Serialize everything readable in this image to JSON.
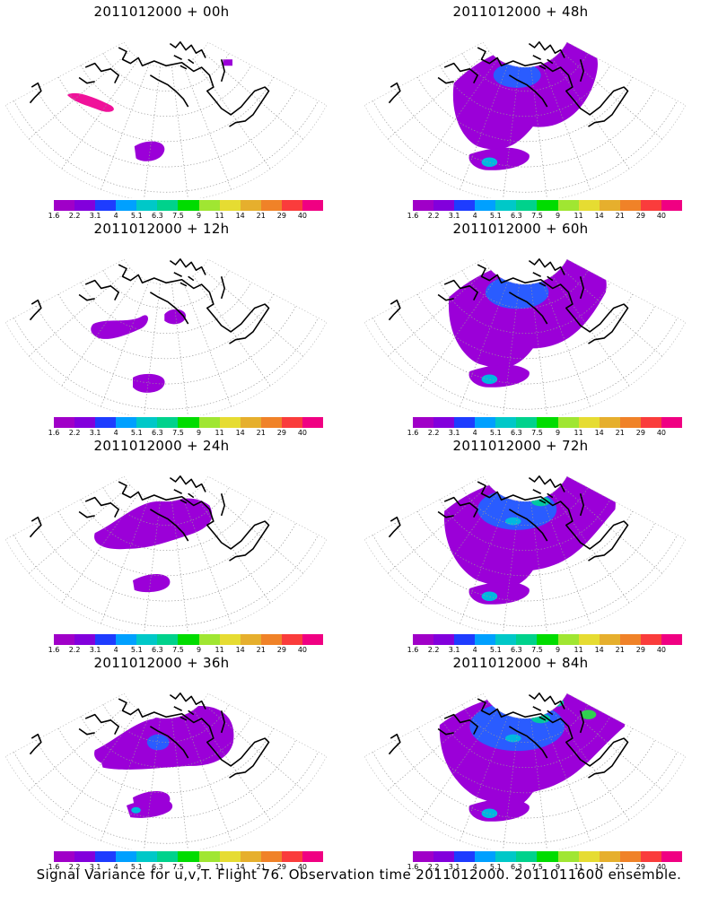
{
  "panels": [
    {
      "title": "2011012000  +  00h",
      "level": 0
    },
    {
      "title": "2011012000  +  48h",
      "level": 3
    },
    {
      "title": "2011012000  +  12h",
      "level": 1
    },
    {
      "title": "2011012000  +  60h",
      "level": 4
    },
    {
      "title": "2011012000  +  24h",
      "level": 2
    },
    {
      "title": "2011012000  +  72h",
      "level": 5
    },
    {
      "title": "2011012000  +  36h",
      "level": 2
    },
    {
      "title": "2011012000  +  84h",
      "level": 6
    }
  ],
  "colorbar": {
    "labels": [
      "1.6",
      "2.2",
      "3.1",
      "4",
      "5.1",
      "6.3",
      "7.5",
      "9",
      "11",
      "14",
      "21",
      "29",
      "40"
    ],
    "colors": [
      "#a000c8",
      "#8200dc",
      "#1e3cff",
      "#00a0ff",
      "#00c8c8",
      "#00d28c",
      "#00dc00",
      "#a0e632",
      "#e6dc32",
      "#e6af2d",
      "#f08228",
      "#fa3c3c",
      "#f00082"
    ]
  },
  "caption": "Signal Variance for u,v,T. Flight 76. Observation time 2011012000. 2011011600 ensemble."
}
